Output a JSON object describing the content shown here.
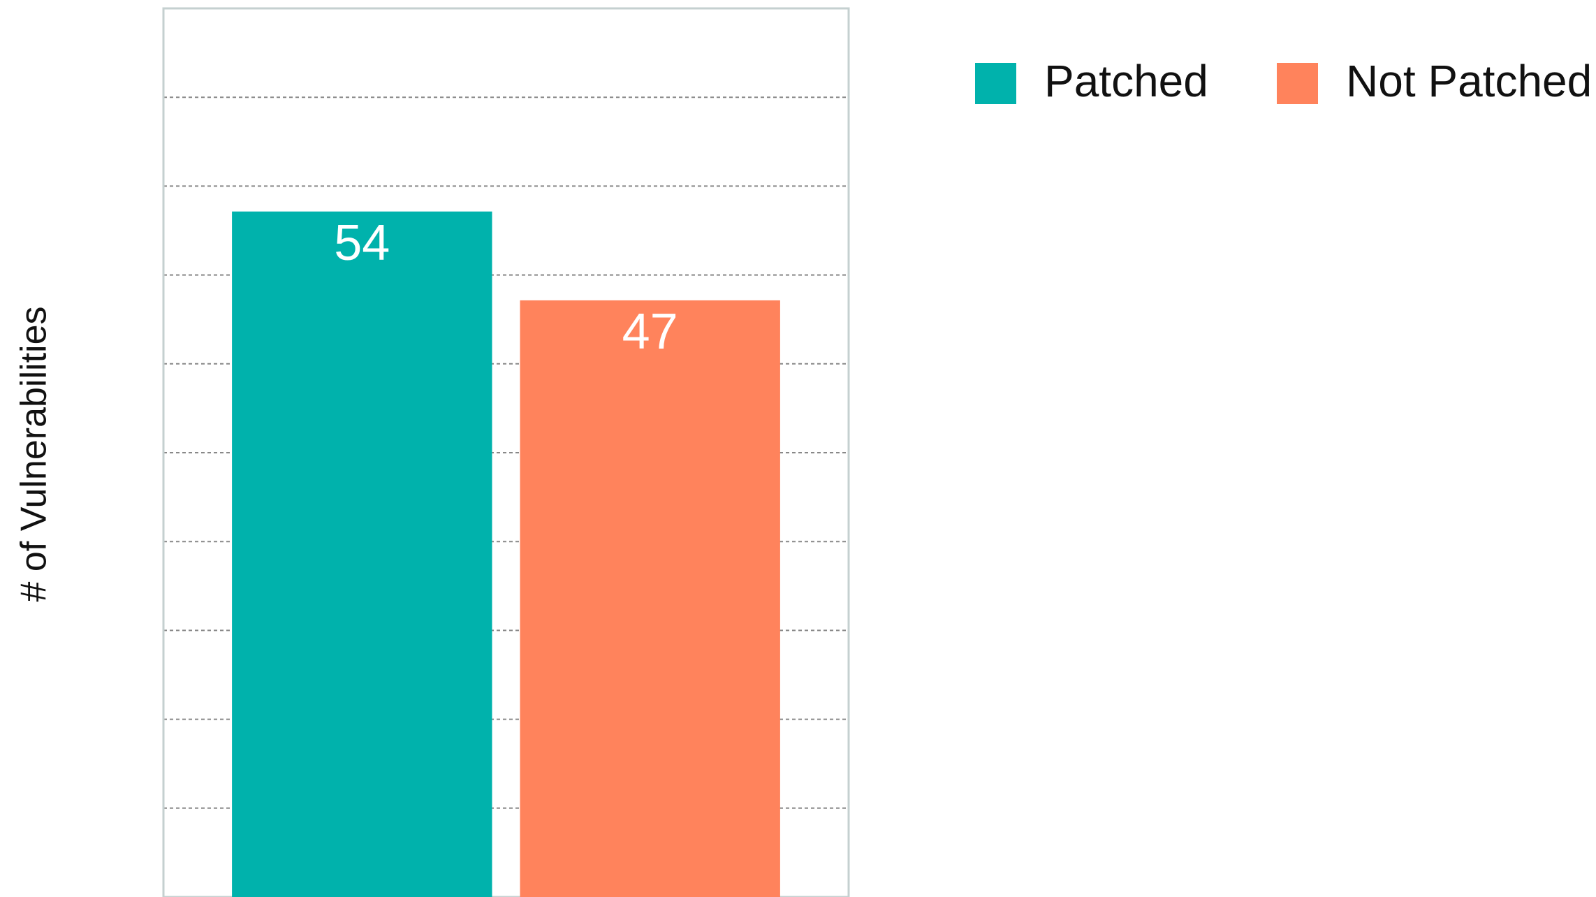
{
  "chart_data": {
    "type": "bar",
    "y_label": "# of Vulnerabilities",
    "categories": [
      null
    ],
    "series": [
      {
        "name": "Patched",
        "color": "#00b2ac",
        "values": [
          54
        ]
      },
      {
        "name": "Not Patched",
        "color": "#ff835c",
        "values": [
          47
        ]
      }
    ],
    "ylim": [
      0,
      70
    ],
    "yticks": [
      0,
      7,
      14,
      21,
      28,
      35,
      42,
      49,
      56,
      63,
      70
    ],
    "grid": true,
    "legend": "top-right"
  }
}
